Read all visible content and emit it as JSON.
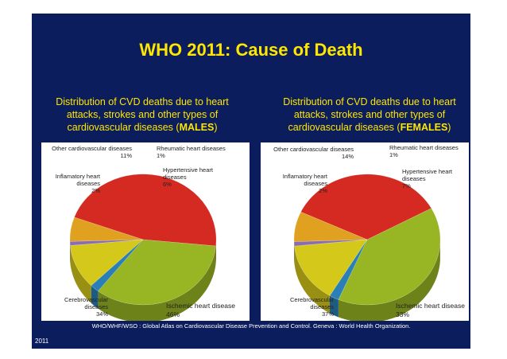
{
  "slide": {
    "title": "WHO 2011: Cause of Death",
    "source": "WHO/WHF/WSO : Global Atlas on Cardiovascular Disease Prevention and Control. Geneva : World Health Organization.",
    "year": "2011"
  },
  "colors": {
    "background": "#0b1d5c",
    "title": "#ffe600",
    "other_cvd": "#d4c81a",
    "rheumatic": "#8a6cb0",
    "hypertensive": "#e0a020",
    "ischemic": "#d42a22",
    "cerebrovascular": "#98b624",
    "inflammatory": "#2a7fb6"
  },
  "chart_data": [
    {
      "type": "pie",
      "title_lines": [
        "Distribution of CVD deaths due to heart",
        "attacks, strokes and other types of",
        "cardiovascular  diseases ("
      ],
      "title_bold": "MALES",
      "title_end": ")",
      "slices": [
        {
          "key": "ischemic",
          "name": "Ischemic heart disease",
          "value": 46,
          "pct": "46%"
        },
        {
          "key": "cerebrovascular",
          "name": "Cerebrovascular diseases",
          "value": 34,
          "pct": "34%"
        },
        {
          "key": "inflammatory",
          "name": "Inflamatory heart diseases",
          "value": 2,
          "pct": "2%"
        },
        {
          "key": "other_cvd",
          "name": "Other cardiovascular diseases",
          "value": 11,
          "pct": "11%"
        },
        {
          "key": "rheumatic",
          "name": "Rheumatic heart diseases",
          "value": 1,
          "pct": "1%"
        },
        {
          "key": "hypertensive",
          "name": "Hypertensive heart diseases",
          "value": 6,
          "pct": "6%"
        }
      ]
    },
    {
      "type": "pie",
      "title_lines": [
        "Distribution of CVD deaths due to heart",
        "attacks, strokes and other types of",
        "cardiovascular  diseases ("
      ],
      "title_bold": "FEMALES",
      "title_end": ")",
      "slices": [
        {
          "key": "ischemic",
          "name": "Ischemic heart disease",
          "value": 33,
          "pct": "33%"
        },
        {
          "key": "cerebrovascular",
          "name": "Cerebrovascular diseases",
          "value": 37,
          "pct": "37%"
        },
        {
          "key": "inflammatory",
          "name": "Inflamatory heart diseases",
          "value": 2,
          "pct": "2%"
        },
        {
          "key": "other_cvd",
          "name": "Other cardiovascular diseases",
          "value": 14,
          "pct": "14%"
        },
        {
          "key": "rheumatic",
          "name": "Rheumatic heart diseases",
          "value": 1,
          "pct": "1%"
        },
        {
          "key": "hypertensive",
          "name": "Hypertensive heart diseases",
          "value": 7,
          "pct": "7%"
        }
      ]
    }
  ]
}
